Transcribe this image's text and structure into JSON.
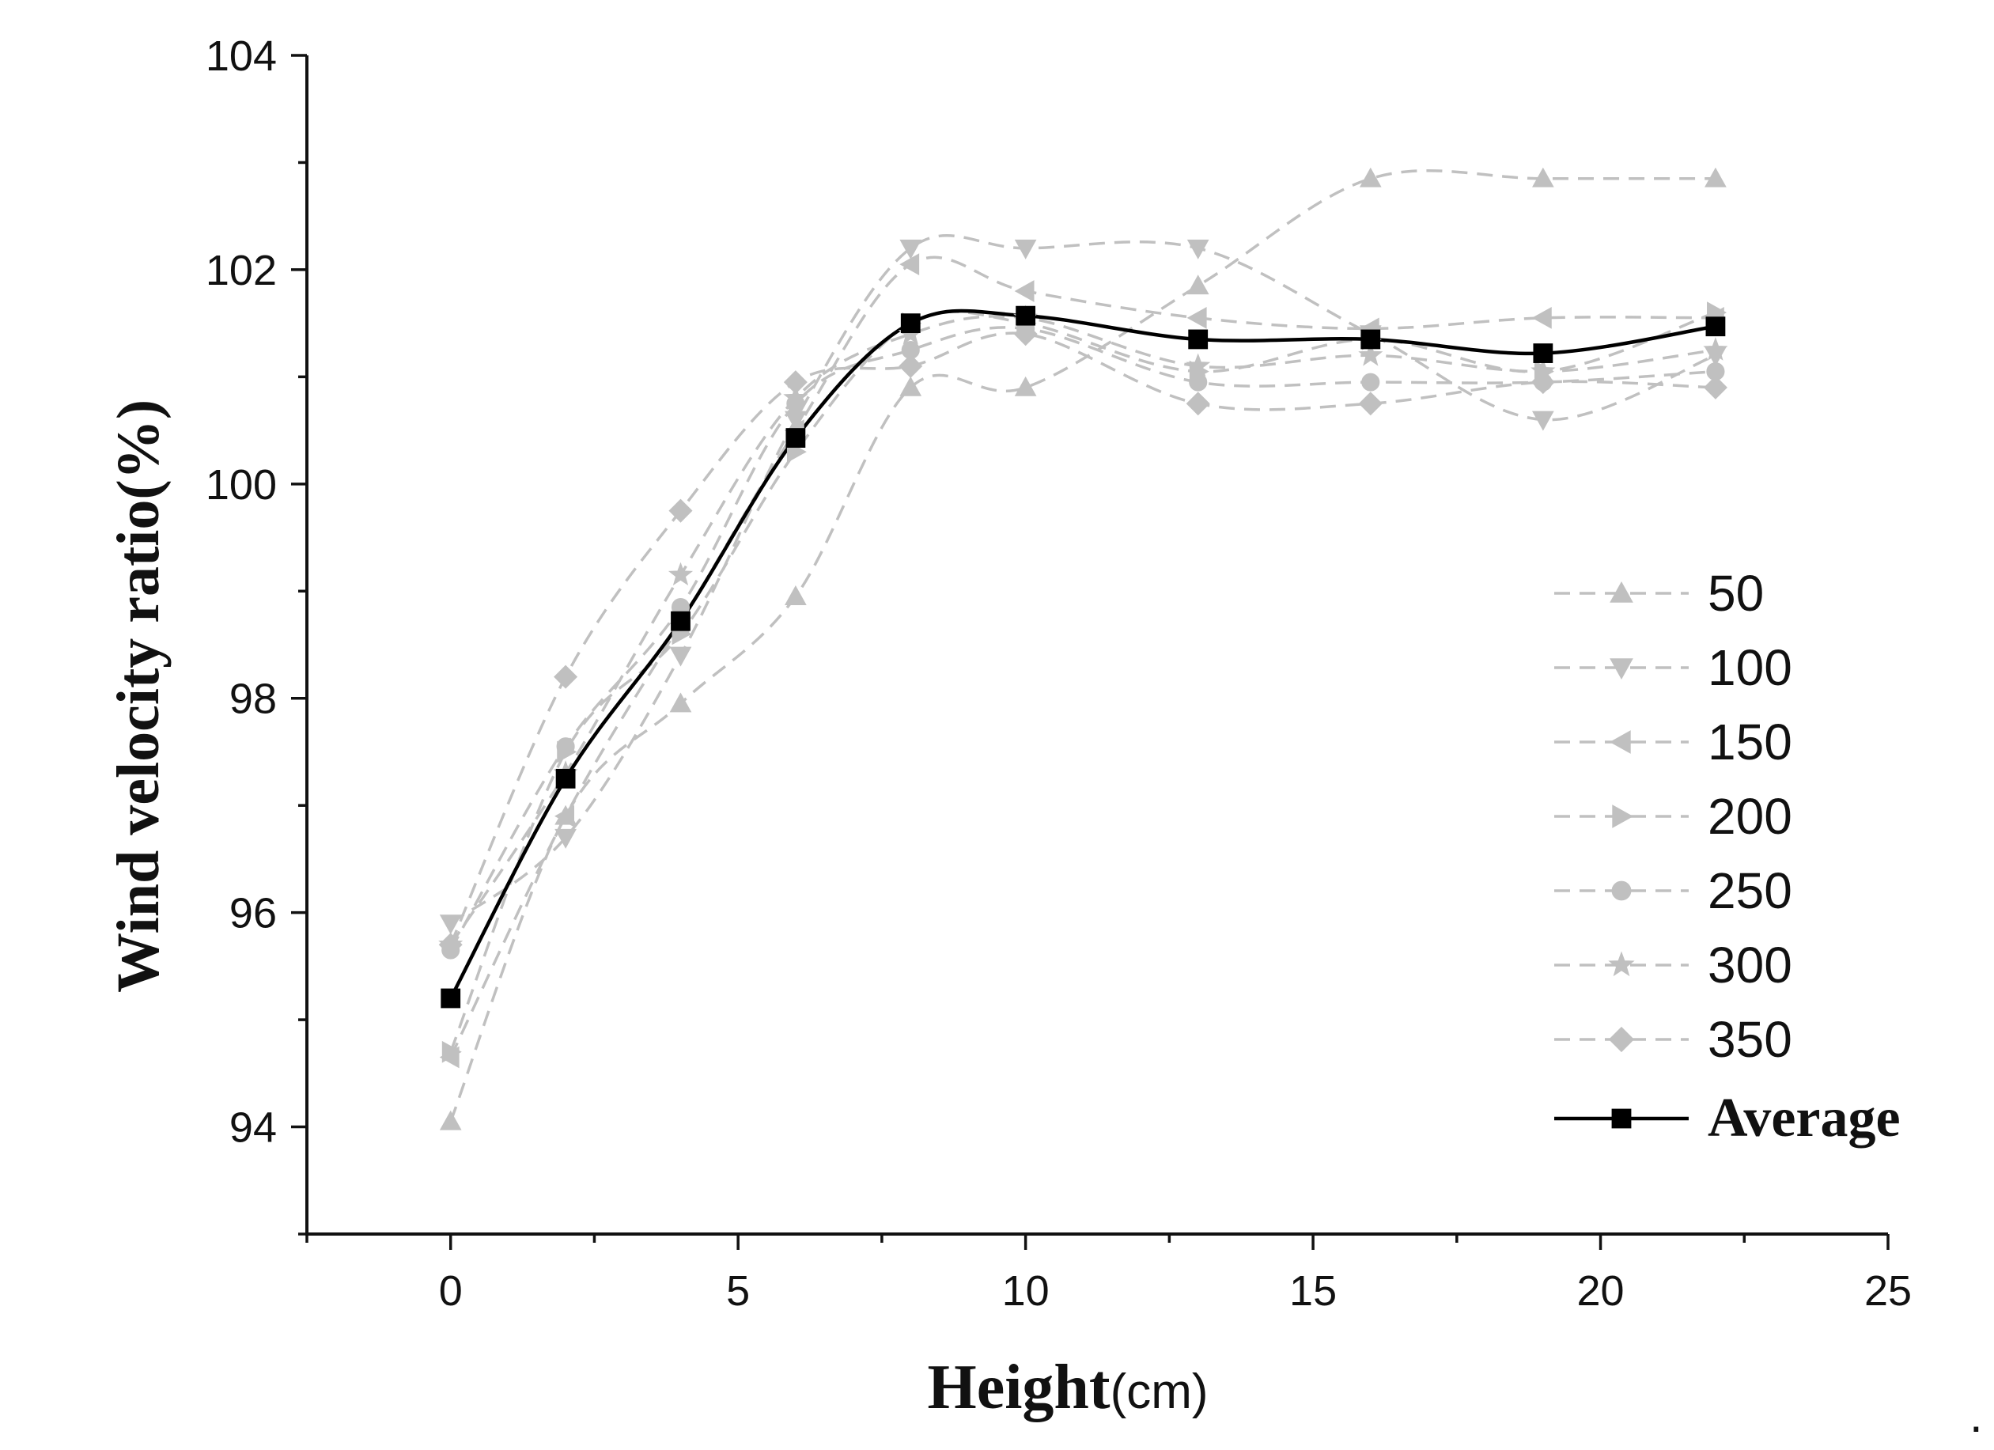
{
  "chart_data": {
    "type": "line",
    "title": "",
    "xlabel": "Height",
    "xlabel_unit": "(cm)",
    "ylabel": "Wind velocity ratio(%)",
    "xlim": [
      -2.5,
      25
    ],
    "ylim": [
      93,
      104
    ],
    "x_ticks": [
      "0",
      "5",
      "10",
      "15",
      "20",
      "25"
    ],
    "y_ticks": [
      "94",
      "96",
      "98",
      "100",
      "102",
      "104"
    ],
    "x": [
      0,
      2,
      4,
      6,
      8,
      10,
      13,
      16,
      19,
      22
    ],
    "series": [
      {
        "name": "50",
        "marker": "triangle-up",
        "color": "#c0c0c0",
        "values": [
          94.05,
          96.9,
          97.95,
          98.95,
          100.9,
          100.9,
          101.85,
          102.85,
          102.85,
          102.85
        ]
      },
      {
        "name": "100",
        "marker": "triangle-down",
        "color": "#c0c0c0",
        "values": [
          95.9,
          96.7,
          98.4,
          100.6,
          102.2,
          102.2,
          102.2,
          101.4,
          100.6,
          101.2
        ]
      },
      {
        "name": "150",
        "marker": "triangle-left",
        "color": "#c0c0c0",
        "values": [
          94.65,
          96.9,
          98.7,
          100.5,
          102.05,
          101.8,
          101.55,
          101.45,
          101.55,
          101.55
        ]
      },
      {
        "name": "200",
        "marker": "triangle-right",
        "color": "#c0c0c0",
        "values": [
          94.7,
          97.5,
          98.6,
          100.3,
          101.5,
          101.5,
          101.05,
          101.35,
          101.05,
          101.6
        ]
      },
      {
        "name": "250",
        "marker": "circle",
        "color": "#c0c0c0",
        "values": [
          95.65,
          97.55,
          98.85,
          100.75,
          101.25,
          101.45,
          100.95,
          100.95,
          100.95,
          101.05
        ]
      },
      {
        "name": "300",
        "marker": "star",
        "color": "#c0c0c0",
        "values": [
          95.7,
          97.3,
          99.15,
          100.8,
          101.4,
          101.55,
          101.1,
          101.2,
          101.05,
          101.25
        ]
      },
      {
        "name": "350",
        "marker": "diamond",
        "color": "#c0c0c0",
        "values": [
          95.7,
          98.2,
          99.75,
          100.95,
          101.1,
          101.4,
          100.75,
          100.75,
          100.95,
          100.9
        ]
      },
      {
        "name": "Average",
        "marker": "square",
        "color": "#000000",
        "values": [
          95.2,
          97.25,
          98.72,
          100.43,
          101.5,
          101.57,
          101.35,
          101.35,
          101.22,
          101.47
        ]
      }
    ],
    "legend_position": "right",
    "grid": false
  },
  "trailing_mark": "."
}
